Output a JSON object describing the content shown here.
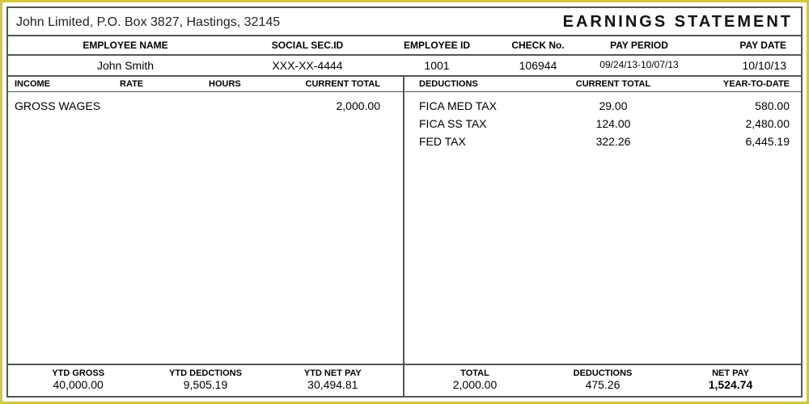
{
  "header": {
    "company": "John Limited, P.O. Box 3827, Hastings, 32145",
    "title": "EARNINGS  STATEMENT"
  },
  "employee_headers": {
    "name": "EMPLOYEE NAME",
    "ssn": "SOCIAL SEC.ID",
    "eid": "EMPLOYEE ID",
    "check": "CHECK No.",
    "period": "PAY PERIOD",
    "date": "PAY DATE"
  },
  "employee": {
    "name": "John Smith",
    "ssn": "XXX-XX-4444",
    "eid": "1001",
    "check": "106944",
    "period": "09/24/13-10/07/13",
    "date": "10/10/13"
  },
  "income_headers": {
    "income": "INCOME",
    "rate": "RATE",
    "hours": "HOURS",
    "current": "CURRENT TOTAL"
  },
  "income": [
    {
      "name": "GROSS WAGES",
      "rate": "",
      "hours": "",
      "current": "2,000.00"
    }
  ],
  "deduction_headers": {
    "name": "DEDUCTIONS",
    "current": "CURRENT TOTAL",
    "ytd": "YEAR-TO-DATE"
  },
  "deductions": [
    {
      "name": "FICA MED TAX",
      "current": "29.00",
      "ytd": "580.00"
    },
    {
      "name": "FICA SS TAX",
      "current": "124.00",
      "ytd": "2,480.00"
    },
    {
      "name": "FED TAX",
      "current": "322.26",
      "ytd": "6,445.19"
    }
  ],
  "footer_left": {
    "ytd_gross_h": "YTD GROSS",
    "ytd_gross_v": "40,000.00",
    "ytd_ded_h": "YTD DEDCTIONS",
    "ytd_ded_v": "9,505.19",
    "ytd_net_h": "YTD NET PAY",
    "ytd_net_v": "30,494.81"
  },
  "footer_right": {
    "total_h": "TOTAL",
    "total_v": "2,000.00",
    "ded_h": "DEDUCTIONS",
    "ded_v": "475.26",
    "net_h": "NET PAY",
    "net_v": "1,524.74"
  }
}
